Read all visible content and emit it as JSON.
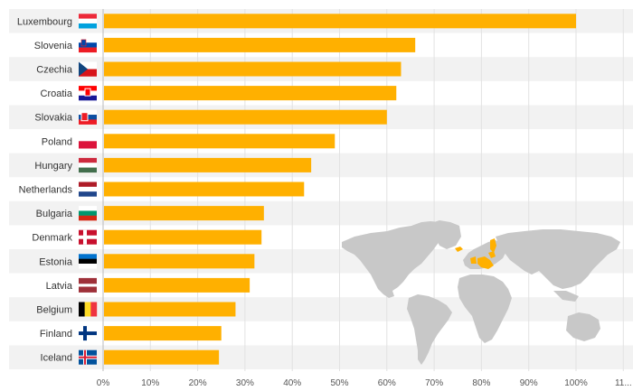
{
  "chart_data": {
    "type": "bar",
    "orientation": "horizontal",
    "categories": [
      "Luxembourg",
      "Slovenia",
      "Czechia",
      "Croatia",
      "Slovakia",
      "Poland",
      "Hungary",
      "Netherlands",
      "Bulgaria",
      "Denmark",
      "Estonia",
      "Latvia",
      "Belgium",
      "Finland",
      "Iceland"
    ],
    "values": [
      100,
      66,
      63,
      62,
      60,
      49,
      44,
      42.5,
      34,
      33.5,
      32,
      31,
      28,
      25,
      24.5
    ],
    "xlim": [
      0,
      110
    ],
    "xticks": [
      "0%",
      "10%",
      "20%",
      "30%",
      "40%",
      "50%",
      "60%",
      "70%",
      "80%",
      "90%",
      "100%",
      "11..."
    ],
    "bar_color": "#ffb000",
    "row_band_color": "#f2f2f2",
    "grid": true,
    "title": "",
    "xlabel": "",
    "ylabel": "",
    "flags": [
      "lu-flag",
      "si-flag",
      "cz-flag",
      "hr-flag",
      "sk-flag",
      "pl-flag",
      "hu-flag",
      "nl-flag",
      "bg-flag",
      "dk-flag",
      "ee-flag",
      "lv-flag",
      "be-flag",
      "fi-flag",
      "is-flag"
    ],
    "map": {
      "land_color": "#c8c8c8",
      "highlight_color": "#ffb000"
    }
  }
}
